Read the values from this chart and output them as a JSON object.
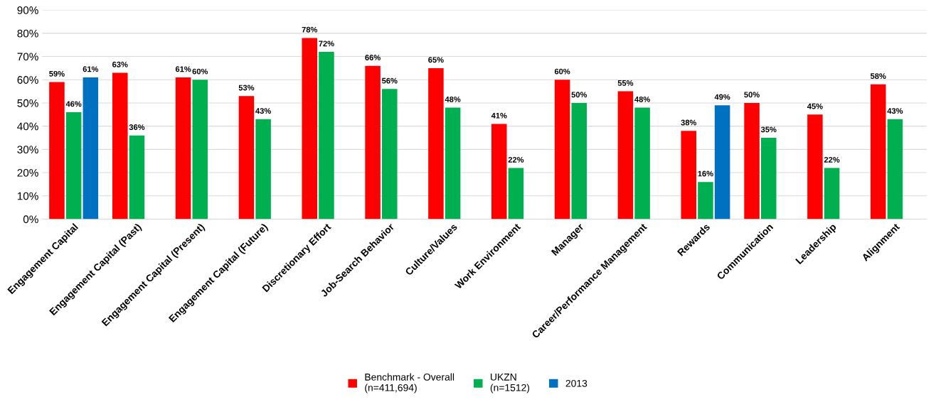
{
  "chart_data": {
    "type": "bar",
    "categories": [
      "Engagement Capital",
      "Engagement Capital (Past)",
      "Engagement Capital (Present)",
      "Engagement Capital (Future)",
      "Discretionary Effort",
      "Job-Search Behavior",
      "Culture/Values",
      "Work Environment",
      "Manager",
      "Career/Performance Management",
      "Rewards",
      "Communication",
      "Leadership",
      "Alignment"
    ],
    "series": [
      {
        "name": "Benchmark - Overall\n(n=411,694)",
        "color": "#ff0000",
        "values": [
          59,
          63,
          61,
          53,
          78,
          66,
          65,
          41,
          60,
          55,
          38,
          50,
          45,
          58
        ],
        "value_labels": [
          "59%",
          "63%",
          "61%",
          "53%",
          "78%",
          "66%",
          "65%",
          "41%",
          "60%",
          "55%",
          "38%",
          "50%",
          "45%",
          "58%"
        ]
      },
      {
        "name": "UKZN\n(n=1512)",
        "color": "#00b050",
        "values": [
          46,
          36,
          60,
          43,
          72,
          56,
          48,
          22,
          50,
          48,
          16,
          35,
          22,
          43
        ],
        "value_labels": [
          "46%",
          "36%",
          "60%",
          "43%",
          "72%",
          "56%",
          "48%",
          "22%",
          "50%",
          "48%",
          "16%",
          "35%",
          "22%",
          "43%"
        ]
      },
      {
        "name": "2013",
        "color": "#0070c0",
        "values": [
          61,
          null,
          null,
          null,
          null,
          null,
          null,
          null,
          null,
          null,
          49,
          null,
          null,
          null
        ],
        "value_labels": [
          "61%",
          null,
          null,
          null,
          null,
          null,
          null,
          null,
          null,
          null,
          "49%",
          null,
          null,
          null
        ]
      }
    ],
    "ylim": [
      0,
      90
    ],
    "yticks": [
      {
        "value": 0,
        "label": "0%"
      },
      {
        "value": 10,
        "label": "10%"
      },
      {
        "value": 20,
        "label": "20%"
      },
      {
        "value": 30,
        "label": "30%"
      },
      {
        "value": 40,
        "label": "40%"
      },
      {
        "value": 50,
        "label": "50%"
      },
      {
        "value": 60,
        "label": "60%"
      },
      {
        "value": 70,
        "label": "70%"
      },
      {
        "value": 80,
        "label": "80%"
      },
      {
        "value": 90,
        "label": "90%"
      }
    ],
    "grid": "y",
    "legend": "bottom"
  }
}
